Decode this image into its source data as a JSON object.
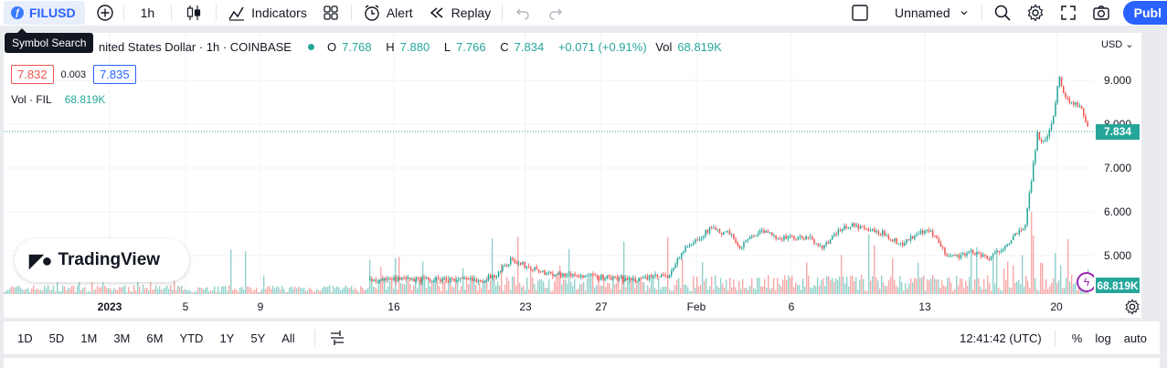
{
  "toolbar": {
    "symbol": "FILUSD",
    "interval": "1h",
    "indicators_label": "Indicators",
    "alert_label": "Alert",
    "replay_label": "Replay",
    "layout_name": "Unnamed",
    "publish_label": "Publ"
  },
  "tooltip": {
    "symbol_search": "Symbol Search"
  },
  "legend": {
    "title": "nited States Dollar · 1h · COINBASE",
    "o_label": "O",
    "o": "7.768",
    "h_label": "H",
    "h": "7.880",
    "l_label": "L",
    "l": "7.766",
    "c_label": "C",
    "c": "7.834",
    "change": "+0.071 (+0.91%)",
    "vol_label": "Vol",
    "vol": "68.819K"
  },
  "quote": {
    "bid": "7.832",
    "spread": "0.003",
    "ask": "7.835"
  },
  "volume_legend": {
    "label": "Vol · FIL",
    "value": "68.819K"
  },
  "logo": {
    "text": "TradingView"
  },
  "price_axis": {
    "currency": "USD",
    "ticks": [
      "9.000",
      "8.000",
      "7.000",
      "6.000",
      "5.000"
    ],
    "last_price": "7.834",
    "last_volume": "68.819K"
  },
  "time_axis": {
    "ticks": [
      {
        "label": "2023",
        "bold": true
      },
      {
        "label": "5",
        "bold": false
      },
      {
        "label": "9",
        "bold": false
      },
      {
        "label": "16",
        "bold": false
      },
      {
        "label": "23",
        "bold": false
      },
      {
        "label": "27",
        "bold": false
      },
      {
        "label": "Feb",
        "bold": false
      },
      {
        "label": "6",
        "bold": false
      },
      {
        "label": "13",
        "bold": false
      },
      {
        "label": "20",
        "bold": false
      }
    ]
  },
  "bottom_bar": {
    "ranges": [
      "1D",
      "5D",
      "1M",
      "3M",
      "6M",
      "YTD",
      "1Y",
      "5Y",
      "All"
    ],
    "clock": "12:41:42 (UTC)",
    "percent_label": "%",
    "log_label": "log",
    "auto_label": "auto"
  },
  "colors": {
    "up": "#26a69a",
    "down": "#ef5350",
    "accent": "#2962ff"
  },
  "chart_data": {
    "type": "candlestick",
    "symbol": "FILUSD",
    "interval": "1h",
    "exchange": "COINBASE",
    "ylim": [
      4.0,
      9.6
    ],
    "last": 7.834,
    "path": [
      [
        0,
        4.45
      ],
      [
        0.07,
        4.45
      ],
      [
        0.11,
        4.45
      ],
      [
        0.125,
        4.45
      ],
      [
        0.155,
        4.45
      ],
      [
        0.175,
        4.55
      ],
      [
        0.195,
        4.9
      ],
      [
        0.245,
        4.6
      ],
      [
        0.33,
        4.5
      ],
      [
        0.36,
        4.45
      ],
      [
        0.415,
        4.55
      ],
      [
        0.435,
        5.1
      ],
      [
        0.45,
        5.3
      ],
      [
        0.475,
        5.65
      ],
      [
        0.48,
        5.55
      ],
      [
        0.5,
        5.5
      ],
      [
        0.515,
        5.2
      ],
      [
        0.535,
        5.5
      ],
      [
        0.545,
        5.55
      ],
      [
        0.56,
        5.45
      ],
      [
        0.58,
        5.4
      ],
      [
        0.61,
        5.4
      ],
      [
        0.63,
        5.2
      ],
      [
        0.655,
        5.6
      ],
      [
        0.67,
        5.7
      ],
      [
        0.7,
        5.55
      ],
      [
        0.715,
        5.5
      ],
      [
        0.74,
        5.25
      ],
      [
        0.76,
        5.5
      ],
      [
        0.78,
        5.55
      ],
      [
        0.8,
        5.05
      ],
      [
        0.82,
        5.0
      ],
      [
        0.84,
        5.1
      ],
      [
        0.86,
        4.9
      ],
      [
        0.88,
        5.2
      ],
      [
        0.9,
        5.5
      ],
      [
        0.91,
        5.6
      ],
      [
        0.918,
        6.5
      ],
      [
        0.928,
        7.8
      ],
      [
        0.935,
        7.5
      ],
      [
        0.95,
        8.1
      ],
      [
        0.958,
        9.1
      ],
      [
        0.965,
        8.7
      ],
      [
        0.975,
        8.5
      ],
      [
        0.988,
        8.4
      ],
      [
        1.0,
        7.83
      ]
    ]
  }
}
